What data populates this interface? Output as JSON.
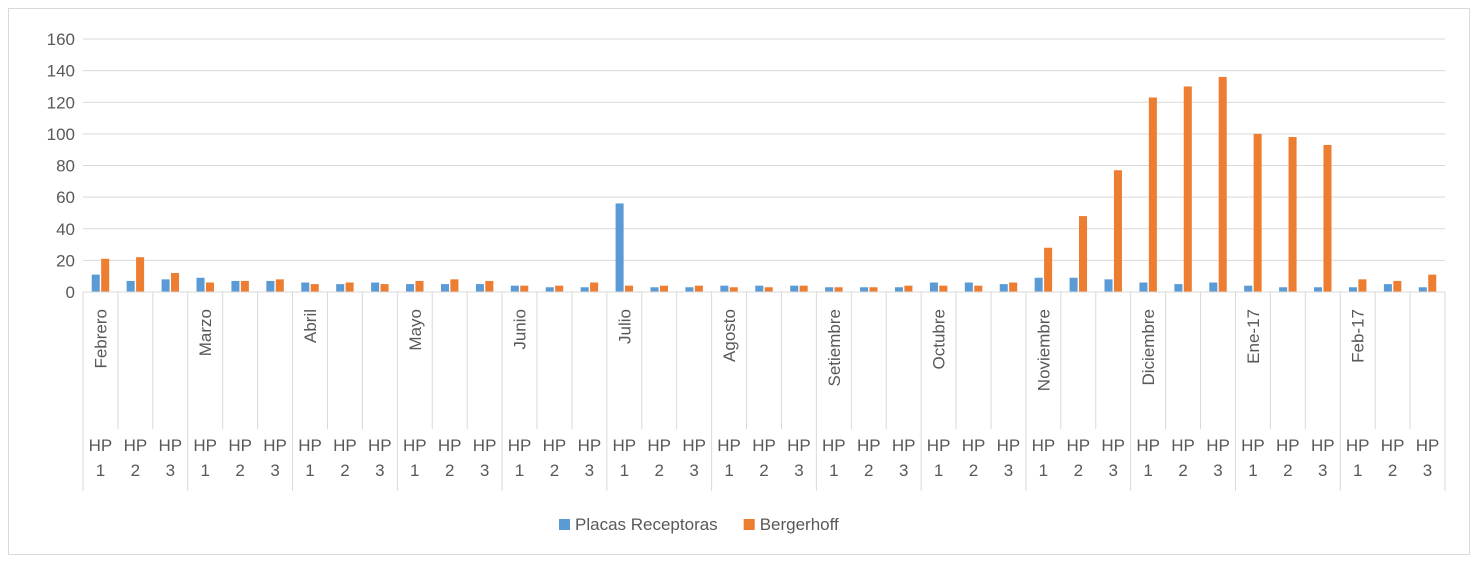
{
  "chart_data": {
    "type": "bar",
    "title": "",
    "xlabel": "",
    "ylabel": "",
    "ylim": [
      0,
      160
    ],
    "yticks": [
      0,
      20,
      40,
      60,
      80,
      100,
      120,
      140,
      160
    ],
    "grid": true,
    "legend_position": "bottom",
    "groups": [
      "Febrero",
      "Marzo",
      "Abril",
      "Mayo",
      "Junio",
      "Julio",
      "Agosto",
      "Setiembre",
      "Octubre",
      "Noviembre",
      "Diciembre",
      "Ene-17",
      "Feb-17"
    ],
    "subcategories": [
      "HP 1",
      "HP 2",
      "HP 3"
    ],
    "series": [
      {
        "name": "Placas Receptoras",
        "color": "#5b9bd5",
        "values": [
          11,
          7,
          8,
          9,
          7,
          7,
          6,
          5,
          6,
          5,
          5,
          5,
          4,
          3,
          3,
          56,
          3,
          3,
          4,
          4,
          4,
          3,
          3,
          3,
          6,
          6,
          5,
          9,
          9,
          8,
          6,
          5,
          6,
          4,
          3,
          3,
          3,
          5,
          3
        ]
      },
      {
        "name": "Bergerhoff",
        "color": "#ed7d31",
        "values": [
          21,
          22,
          12,
          6,
          7,
          8,
          5,
          6,
          5,
          7,
          8,
          7,
          4,
          4,
          6,
          4,
          4,
          4,
          3,
          3,
          4,
          3,
          3,
          4,
          4,
          4,
          6,
          28,
          48,
          77,
          123,
          130,
          136,
          100,
          98,
          93,
          8,
          7,
          11
        ]
      }
    ]
  }
}
